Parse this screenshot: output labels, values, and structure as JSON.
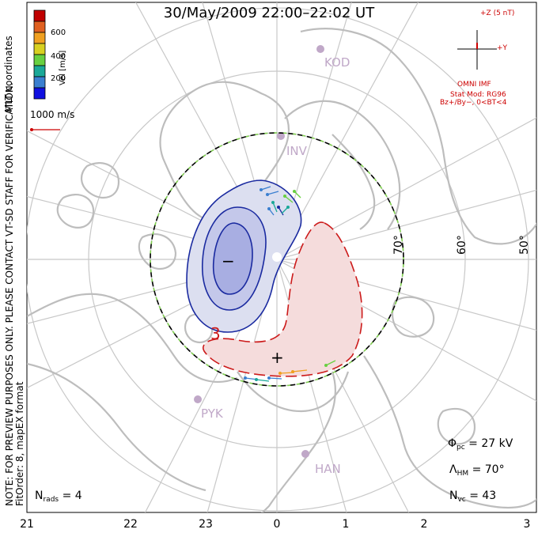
{
  "title": "30/May/2009 22:00–22:02 UT",
  "colorbar": {
    "axis_label": "Vel [m/s]",
    "ticks": [
      "200",
      "400",
      "600"
    ],
    "colors": [
      "#1010e0",
      "#3a7fd0",
      "#1aa898",
      "#68d040",
      "#d8d020",
      "#f0a020",
      "#e06020",
      "#c00000"
    ]
  },
  "coords_label": "MLT coordinates",
  "vector_scale": "1000 m/s",
  "preview_note": "NOTE: FOR PREVIEW PURPOSES ONLY. PLEASE CONTACT VT-SD STAFF FOR VERIFICATION.",
  "fit_note": "FitOrder: 8, mapEX format",
  "imf": {
    "z_label": "+Z (5 nT)",
    "y_label": "+Y",
    "model_title": "OMNI IMF",
    "stat_mod": "Stat Mod: RG96",
    "bz_by": "Bz+/By−, 0<BT<4"
  },
  "stations": [
    "KOD",
    "INV",
    "PYK",
    "HAN"
  ],
  "lat_labels": [
    "70°",
    "60°",
    "50°"
  ],
  "mlt_labels": [
    "21",
    "22",
    "23",
    "0",
    "1",
    "2",
    "3"
  ],
  "contour_marks": {
    "min": "−",
    "max": "+",
    "label": "3"
  },
  "stats": {
    "phi_sym": "Φ",
    "phi_sub": "pc",
    "phi_val": "= 27 kV",
    "lam_sym": "Λ",
    "lam_sub": "HM",
    "lam_val": "= 70°",
    "nvc_sym": "N",
    "nvc_sub": "vc",
    "nvc_val": "= 43",
    "nrads_sym": "N",
    "nrads_sub": "rads",
    "nrads_val": "= 4"
  }
}
